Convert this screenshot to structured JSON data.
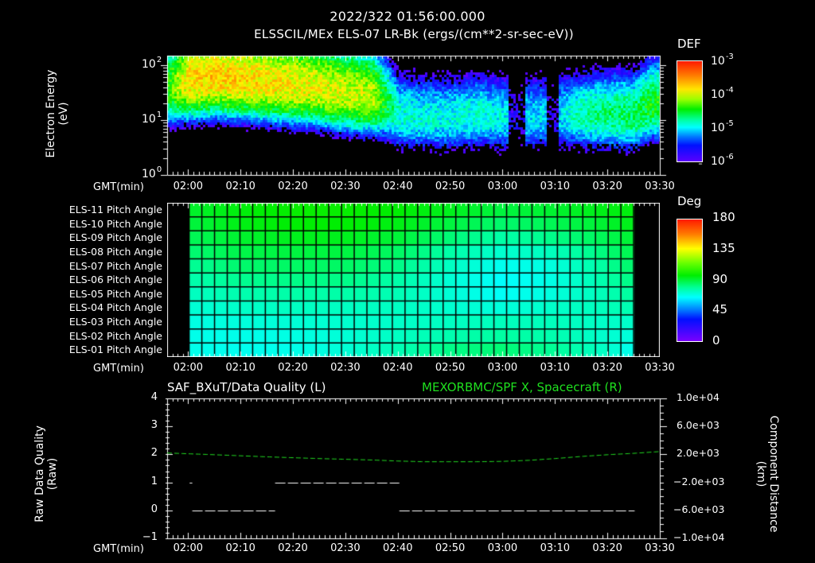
{
  "header": {
    "timestamp": "2022/322 01:56:00.000",
    "title": "ELSSCIL/MEx ELS-07 LR-Bk  (ergs/(cm**2-sr-sec-eV))"
  },
  "time_axis": {
    "label": "GMT(min)",
    "start_min": 116,
    "end_min": 210,
    "ticks": [
      "02:00",
      "02:10",
      "02:20",
      "02:30",
      "02:40",
      "02:50",
      "03:00",
      "03:10",
      "03:20",
      "03:30"
    ],
    "tick_minutes": [
      120,
      130,
      140,
      150,
      160,
      170,
      180,
      190,
      200,
      210
    ]
  },
  "panel1": {
    "ylabel_line1": "Electron Energy",
    "ylabel_line2": "(eV)",
    "y_ticks": [
      {
        "base": "10",
        "exp": "2",
        "value": 100
      },
      {
        "base": "10",
        "exp": "1",
        "value": 10
      },
      {
        "base": "10",
        "exp": "0",
        "value": 1
      }
    ],
    "colorbar": {
      "title": "DEF",
      "ticks": [
        {
          "base": "10",
          "exp": "-3"
        },
        {
          "base": "10",
          "exp": "-4"
        },
        {
          "base": "10",
          "exp": "-5"
        },
        {
          "base": "10",
          "exp": "-6"
        }
      ]
    }
  },
  "panel2": {
    "rows": [
      "ELS-11 Pitch Angle",
      "ELS-10 Pitch Angle",
      "ELS-09 Pitch Angle",
      "ELS-08 Pitch Angle",
      "ELS-07 Pitch Angle",
      "ELS-06 Pitch Angle",
      "ELS-05 Pitch Angle",
      "ELS-04 Pitch Angle",
      "ELS-03 Pitch Angle",
      "ELS-02 Pitch Angle",
      "ELS-01 Pitch Angle"
    ],
    "data_start_min": 120.2,
    "data_end_min": 205.0,
    "colorbar": {
      "title": "Deg",
      "ticks": [
        "180",
        "135",
        "90",
        "45",
        "0"
      ]
    }
  },
  "panel3": {
    "left_title": "SAF_BXuT/Data Quality (L)",
    "right_title": "MEXORBMC/SPF X, Spacecraft (R)",
    "ylabel_left_line1": "Raw Data Quality",
    "ylabel_left_line2": "(Raw)",
    "ylabel_right_line1": "Component Distance",
    "ylabel_right_line2": "(km)",
    "y_left_ticks": [
      "4",
      "3",
      "2",
      "1",
      "0",
      "−1"
    ],
    "y_right_ticks": [
      "1.0e+04",
      "6.0e+03",
      "2.0e+03",
      "−2.0e+03",
      "−6.0e+03",
      "−1.0e+04"
    ]
  },
  "colors": {
    "background": "#000000",
    "axes": "#ffffff",
    "spacecraft_trace": "#22e022",
    "quality_trace": "#ffffff"
  },
  "chart_data": [
    {
      "type": "heatmap",
      "title": "ELSSCIL/MEx ELS-07 LR-Bk (ergs/(cm**2-sr-sec-eV))",
      "subtitle": "2022/322 01:56:00.000",
      "xlabel": "GMT(min)",
      "ylabel": "Electron Energy (eV)",
      "x_ticks": [
        "02:00",
        "02:10",
        "02:20",
        "02:30",
        "02:40",
        "02:50",
        "03:00",
        "03:10",
        "03:20",
        "03:30"
      ],
      "x_range": [
        "01:56",
        "03:30"
      ],
      "y_scale": "log",
      "ylim": [
        1,
        150
      ],
      "colorbar": {
        "label": "DEF",
        "scale": "log",
        "range": [
          1e-06,
          0.001
        ]
      },
      "features": [
        {
          "time_range": [
            "01:57",
            "02:38"
          ],
          "energy_eV": [
            15,
            120
          ],
          "level": "~2e-4 peak (green-yellow)"
        },
        {
          "time_range": [
            "02:40",
            "03:28"
          ],
          "energy_eV": [
            7,
            30
          ],
          "level": "~1e-5 (cyan)"
        },
        {
          "time_range": [
            "03:05",
            "03:09"
          ],
          "energy_eV": [
            1,
            150
          ],
          "level": "gap / low counts"
        }
      ],
      "band_profile_minutes": [
        116,
        120,
        125,
        130,
        135,
        140,
        145,
        150,
        155,
        158,
        160,
        165,
        170,
        175,
        180,
        185,
        190,
        195,
        200,
        205,
        208
      ],
      "band_center_log10_eV": [
        1.6,
        1.75,
        1.8,
        1.75,
        1.7,
        1.65,
        1.6,
        1.5,
        1.45,
        1.3,
        1.1,
        1.05,
        1.05,
        1.1,
        1.05,
        1.05,
        1.1,
        1.1,
        1.1,
        1.1,
        1.3
      ],
      "band_peak_log10_DEF": [
        -4.3,
        -3.75,
        -3.7,
        -3.75,
        -3.8,
        -3.85,
        -3.9,
        -3.95,
        -4.0,
        -4.5,
        -4.8,
        -4.85,
        -4.85,
        -4.8,
        -4.9,
        -4.95,
        -5.0,
        -4.7,
        -4.6,
        -4.55,
        -4.4
      ]
    },
    {
      "type": "heatmap",
      "title": "Pitch Angle",
      "xlabel": "GMT(min)",
      "categories": [
        "ELS-11",
        "ELS-10",
        "ELS-09",
        "ELS-08",
        "ELS-07",
        "ELS-06",
        "ELS-05",
        "ELS-04",
        "ELS-03",
        "ELS-02",
        "ELS-01"
      ],
      "colorbar": {
        "label": "Deg",
        "range": [
          0,
          180
        ],
        "ticks": [
          0,
          45,
          90,
          135,
          180
        ]
      },
      "data_time_range": [
        "02:00",
        "03:25"
      ],
      "column_minutes": [
        120,
        130,
        140,
        150,
        160,
        170,
        180,
        190,
        200,
        205
      ],
      "values_deg": [
        [
          92,
          96,
          98,
          98,
          97,
          94,
          90,
          92,
          95,
          96
        ],
        [
          90,
          95,
          97,
          97,
          95,
          90,
          85,
          88,
          92,
          95
        ],
        [
          87,
          92,
          94,
          94,
          91,
          84,
          78,
          82,
          88,
          92
        ],
        [
          84,
          89,
          90,
          90,
          86,
          78,
          72,
          75,
          84,
          89
        ],
        [
          80,
          85,
          86,
          86,
          82,
          74,
          67,
          70,
          80,
          86
        ],
        [
          77,
          81,
          82,
          82,
          78,
          71,
          65,
          69,
          78,
          83
        ],
        [
          74,
          77,
          78,
          78,
          76,
          71,
          66,
          70,
          76,
          80
        ],
        [
          71,
          73,
          74,
          74,
          74,
          72,
          70,
          73,
          75,
          77
        ],
        [
          69,
          70,
          71,
          72,
          73,
          74,
          75,
          75,
          73,
          73
        ],
        [
          68,
          68,
          69,
          71,
          74,
          77,
          79,
          77,
          72,
          70
        ],
        [
          68,
          67,
          68,
          71,
          76,
          82,
          84,
          80,
          73,
          67
        ]
      ]
    },
    {
      "type": "line",
      "title": "SAF_BXuT/Data Quality (L) ; MEXORBMC/SPF X, Spacecraft (R)",
      "xlabel": "GMT(min)",
      "ylabel": "Raw Data Quality (Raw)",
      "ylabel_right": "Component Distance (km)",
      "ylim": [
        -1,
        4
      ],
      "ylim_right": [
        -10000,
        10000
      ],
      "series": [
        {
          "name": "Data Quality (L)",
          "axis": "left",
          "color": "#ffffff",
          "segments": [
            {
              "x_min": [
                120.3,
                120.8
              ],
              "y": 1
            },
            {
              "x_min": [
                120.8,
                136.6
              ],
              "y": 0
            },
            {
              "x_min": [
                136.6,
                160.3
              ],
              "y": 1
            },
            {
              "x_min": [
                160.3,
                205.2
              ],
              "y": 0
            }
          ]
        },
        {
          "name": "MEXORBMC/SPF X, Spacecraft (R)",
          "axis": "right",
          "color": "#22e022",
          "style": "dashed",
          "x_min": [
            116,
            125,
            135,
            145,
            155,
            160,
            165,
            170,
            175,
            180,
            185,
            190,
            195,
            200,
            205,
            210
          ],
          "y_km": [
            2200,
            1950,
            1650,
            1400,
            1200,
            1050,
            950,
            950,
            950,
            1000,
            1150,
            1400,
            1700,
            1950,
            2150,
            2400
          ]
        }
      ]
    }
  ]
}
